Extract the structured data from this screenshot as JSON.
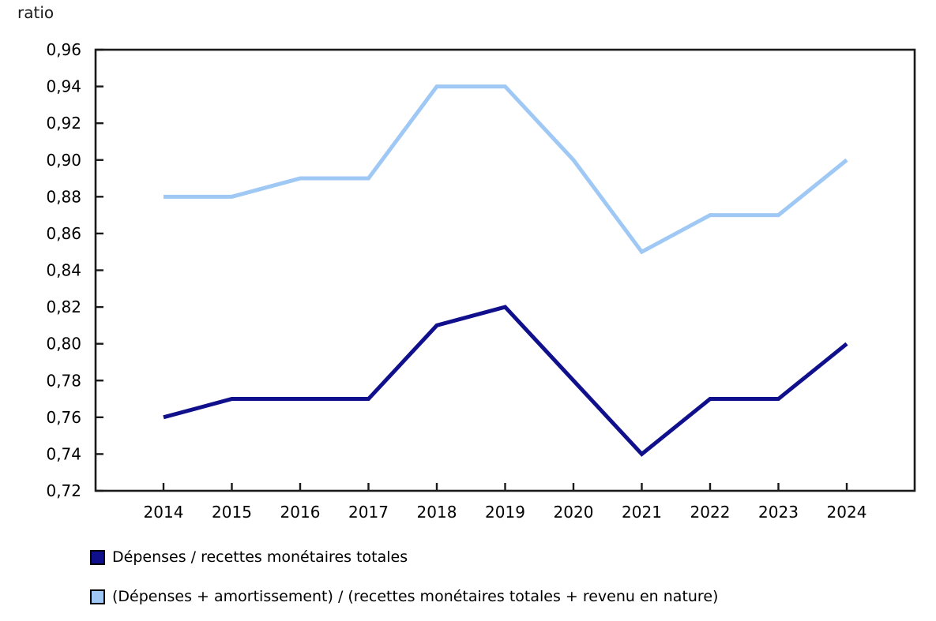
{
  "chart_data": {
    "type": "line",
    "title": "",
    "ylabel": "ratio",
    "xlabel": "",
    "x": [
      2014,
      2015,
      2016,
      2017,
      2018,
      2019,
      2020,
      2021,
      2022,
      2023,
      2024
    ],
    "series": [
      {
        "name": "Dépenses / recettes monétaires totales",
        "color": "#10108C",
        "values": [
          0.76,
          0.77,
          0.77,
          0.77,
          0.81,
          0.82,
          0.78,
          0.74,
          0.77,
          0.77,
          0.8
        ]
      },
      {
        "name": "(Dépenses + amortissement) / (recettes monétaires totales + revenu en nature)",
        "color": "#9FC9F4",
        "values": [
          0.88,
          0.88,
          0.89,
          0.89,
          0.94,
          0.94,
          0.9,
          0.85,
          0.87,
          0.87,
          0.9
        ]
      }
    ],
    "ylim": [
      0.72,
      0.96
    ],
    "ytick_step": 0.02,
    "decimal_separator": ",",
    "grid": false,
    "legend_position": "bottom-left",
    "axis_color": "#1a1a1a"
  }
}
